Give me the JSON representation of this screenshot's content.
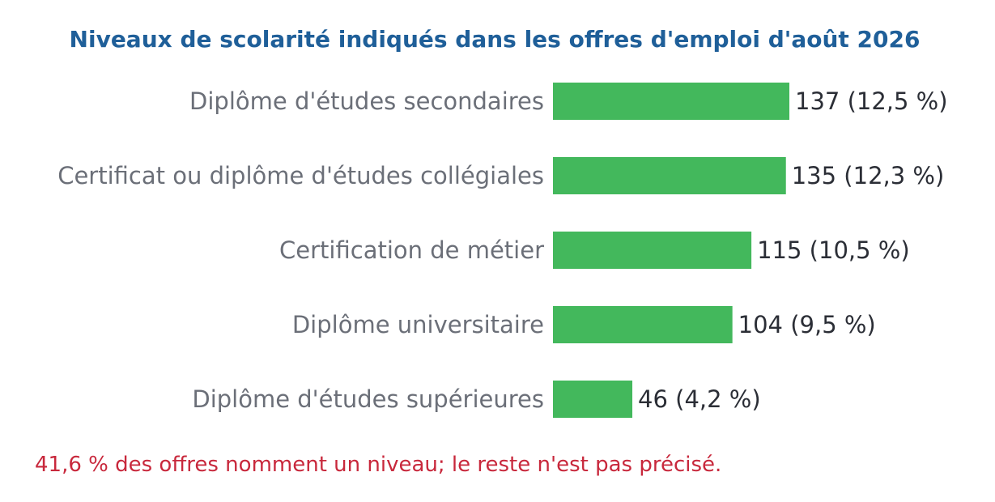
{
  "chart_data": {
    "type": "bar",
    "orientation": "horizontal",
    "title": "Niveaux de scolarité indiqués dans les offres d'emploi d'août 2026",
    "categories": [
      "Diplôme d'études secondaires",
      "Certificat ou diplôme d'études collégiales",
      "Certification de métier",
      "Diplôme universitaire",
      "Diplôme d'études supérieures"
    ],
    "values": [
      137,
      135,
      115,
      104,
      46
    ],
    "percents": [
      "12,5 %",
      "12,3 %",
      "10,5 %",
      "9,5 %",
      "4,2 %"
    ],
    "note": "41,6 % des offres nomment un niveau; le reste n'est pas précisé.",
    "grid": false,
    "legend": "none",
    "xlim": [
      0,
      137
    ]
  },
  "colors": {
    "title": "#1f5f99",
    "bar": "#43b85c",
    "category_text": "#6b6f78",
    "value_text": "#2b2e36",
    "note": "#c8283c"
  }
}
